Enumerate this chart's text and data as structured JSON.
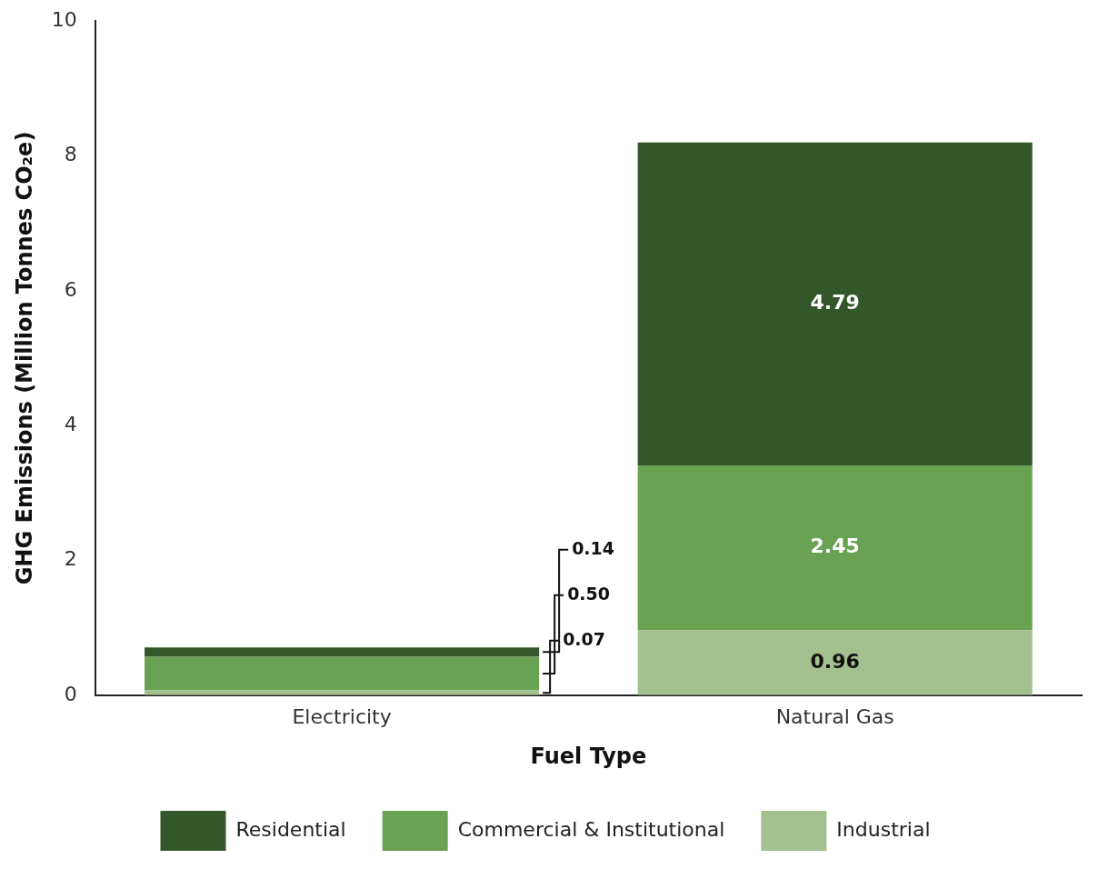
{
  "chart_data": {
    "type": "bar",
    "stacked": true,
    "xlabel": "Fuel Type",
    "ylabel": "GHG Emissions (Million Tonnes CO₂e)",
    "categories": [
      "Electricity",
      "Natural Gas"
    ],
    "series": [
      {
        "name": "Industrial",
        "color": "#a3c18e",
        "values": [
          0.07,
          0.96
        ],
        "value_labels": [
          "0.07",
          "0.96"
        ]
      },
      {
        "name": "Commercial & Institutional",
        "color": "#6aa253",
        "values": [
          0.5,
          2.45
        ],
        "value_labels": [
          "0.50",
          "2.45"
        ]
      },
      {
        "name": "Residential",
        "color": "#33562a",
        "values": [
          0.14,
          4.79
        ],
        "value_labels": [
          "0.14",
          "4.79"
        ]
      }
    ],
    "ylim": [
      0,
      10
    ],
    "yticks": [
      0,
      2,
      4,
      6,
      8,
      10
    ],
    "grid": false,
    "legend": "bottom"
  }
}
